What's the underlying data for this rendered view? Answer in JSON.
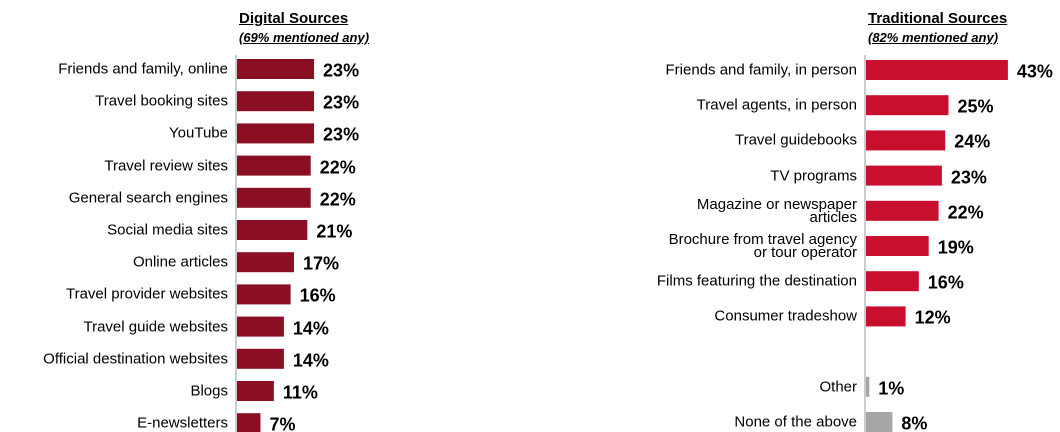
{
  "chart_data": [
    {
      "type": "barh",
      "title": "Digital Sources",
      "subtitle": "(69% mentioned any)",
      "categories": [
        "Friends and family, online",
        "Travel booking sites",
        "YouTube",
        "Travel review sites",
        "General search engines",
        "Social media sites",
        "Online articles",
        "Travel provider websites",
        "Travel guide websites",
        "Official destination websites",
        "Blogs",
        "E-newsletters"
      ],
      "values": [
        23,
        23,
        23,
        22,
        22,
        21,
        17,
        16,
        14,
        14,
        11,
        7
      ],
      "value_labels": [
        "23%",
        "23%",
        "23%",
        "22%",
        "22%",
        "21%",
        "17%",
        "16%",
        "14%",
        "14%",
        "11%",
        "7%"
      ],
      "color": "#8b0f22"
    },
    {
      "type": "barh",
      "title": "Traditional Sources",
      "subtitle": "(82% mentioned any)",
      "categories": [
        "Friends and family, in person",
        "Travel agents, in person",
        "Travel guidebooks",
        "TV programs",
        "Magazine or newspaper\narticles",
        "Brochure from travel agency\nor tour operator",
        "Films featuring the destination",
        "Consumer tradeshow",
        "Other",
        "None of the above"
      ],
      "values": [
        43,
        25,
        24,
        23,
        22,
        19,
        16,
        12,
        1,
        8
      ],
      "value_labels": [
        "43%",
        "25%",
        "24%",
        "23%",
        "22%",
        "19%",
        "16%",
        "12%",
        "1%",
        "8%"
      ],
      "colors": [
        "#c8102e",
        "#c8102e",
        "#c8102e",
        "#c8102e",
        "#c8102e",
        "#c8102e",
        "#c8102e",
        "#c8102e",
        "#a6a6a6",
        "#a6a6a6"
      ]
    }
  ]
}
